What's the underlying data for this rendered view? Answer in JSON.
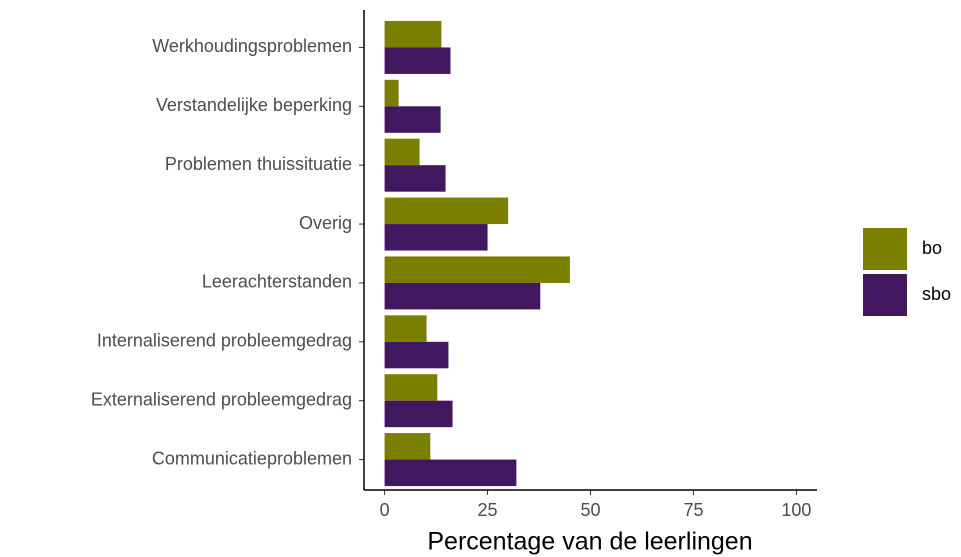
{
  "chart_data": {
    "type": "barh",
    "categories": [
      "Werkhoudingsproblemen",
      "Verstandelijke beperking",
      "Problemen thuissituatie",
      "Overig",
      "Leerachterstanden",
      "Internaliserend probleemgedrag",
      "Externaliserend probleemgedrag",
      "Communicatieproblemen"
    ],
    "series": [
      {
        "name": "bo",
        "color": "#7b7f00",
        "values": [
          13.8,
          3.4,
          8.5,
          30,
          45,
          10.2,
          12.8,
          11.1
        ]
      },
      {
        "name": "sbo",
        "color": "#41175f",
        "values": [
          16,
          13.6,
          14.8,
          25,
          37.8,
          15.5,
          16.5,
          32
        ]
      }
    ],
    "x_label": "Percentage van de leerlingen",
    "xlim": [
      -5,
      105
    ],
    "xticks": [
      0,
      25,
      50,
      75,
      100
    ],
    "grid": false,
    "legend": "right"
  }
}
